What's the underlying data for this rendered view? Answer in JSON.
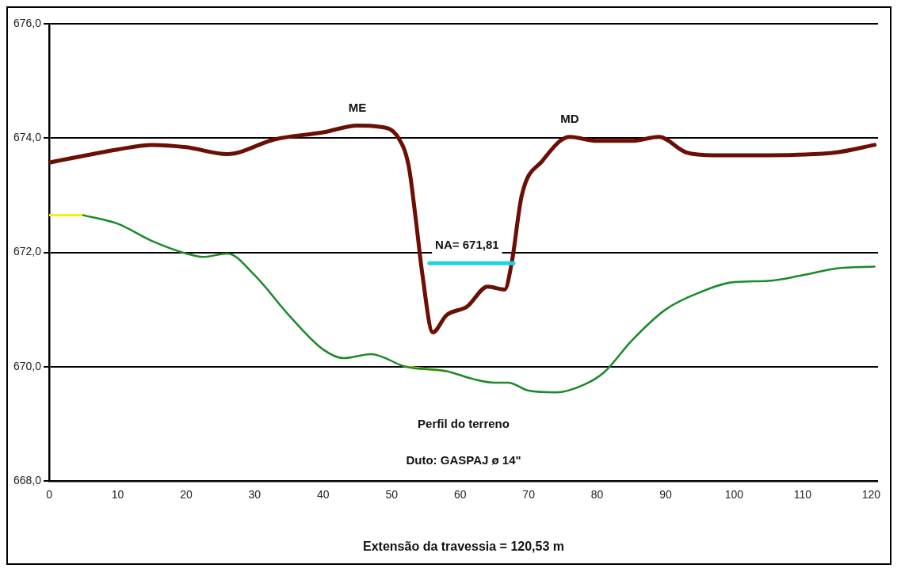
{
  "chart_data": {
    "type": "line",
    "xlabel": "Extensão da travessia = 120,53 m",
    "xlim": [
      0,
      121
    ],
    "xticks": [
      0,
      10,
      20,
      30,
      40,
      50,
      60,
      70,
      80,
      90,
      100,
      110,
      120
    ],
    "ylim": [
      668,
      676
    ],
    "yticks": [
      {
        "value": 668,
        "label": "668,0"
      },
      {
        "value": 670,
        "label": "670,0"
      },
      {
        "value": 672,
        "label": "672,0"
      },
      {
        "value": 674,
        "label": "674,0"
      },
      {
        "value": 676,
        "label": "676,0"
      }
    ],
    "grid": "y",
    "marker": "none",
    "line_style": "solid",
    "legend": false,
    "series": [
      {
        "color": "#6b0f05",
        "x": [
          0,
          10,
          15,
          20,
          26,
          33,
          40,
          45,
          48,
          51,
          52.5,
          53.5,
          54.5,
          56,
          58,
          61,
          64,
          66.5,
          67.5,
          69,
          72,
          76,
          80,
          85,
          89,
          93,
          97,
          105,
          115,
          120.5
        ],
        "values": [
          673.57,
          673.8,
          673.88,
          673.84,
          673.72,
          673.98,
          674.1,
          674.22,
          674.2,
          674.0,
          673.5,
          672.6,
          671.6,
          670.6,
          670.9,
          671.05,
          671.4,
          671.35,
          671.8,
          673.0,
          673.6,
          674.02,
          673.95,
          673.95,
          674.02,
          673.75,
          673.7,
          673.7,
          673.75,
          673.88
        ]
      },
      {
        "color": "#1a8a2a",
        "x": [
          5,
          10,
          15,
          20,
          22.5,
          26,
          30,
          35,
          40,
          43,
          47,
          52,
          58,
          62,
          65,
          67,
          70,
          74,
          78,
          81,
          85,
          90,
          95,
          100,
          105,
          110,
          115,
          120.5
        ],
        "values": [
          672.65,
          672.5,
          672.2,
          671.98,
          671.92,
          671.98,
          671.6,
          670.9,
          670.3,
          670.15,
          670.22,
          670.0,
          669.92,
          669.78,
          669.72,
          669.72,
          669.58,
          669.55,
          669.68,
          669.9,
          670.45,
          671.0,
          671.3,
          671.48,
          671.5,
          671.6,
          671.72,
          671.75
        ]
      },
      {
        "color": "#f2f20a",
        "x": [
          0,
          5,
          20,
          52,
          58
        ],
        "values": [
          672.65,
          672.65,
          null,
          670.0,
          669.92
        ]
      },
      {
        "color": "#1fd3e0",
        "x": [
          55.5,
          67.8
        ],
        "values": [
          671.81,
          671.81
        ]
      }
    ],
    "annotations": [
      {
        "text": "ME",
        "x": 45,
        "y": 674.22
      },
      {
        "text": "MD",
        "x": 76,
        "y": 674.02
      },
      {
        "text": "NA= 671,81",
        "x": 61,
        "y": 671.81
      },
      "Perfil do terreno",
      "Duto: GASPAJ ø 14\""
    ]
  }
}
